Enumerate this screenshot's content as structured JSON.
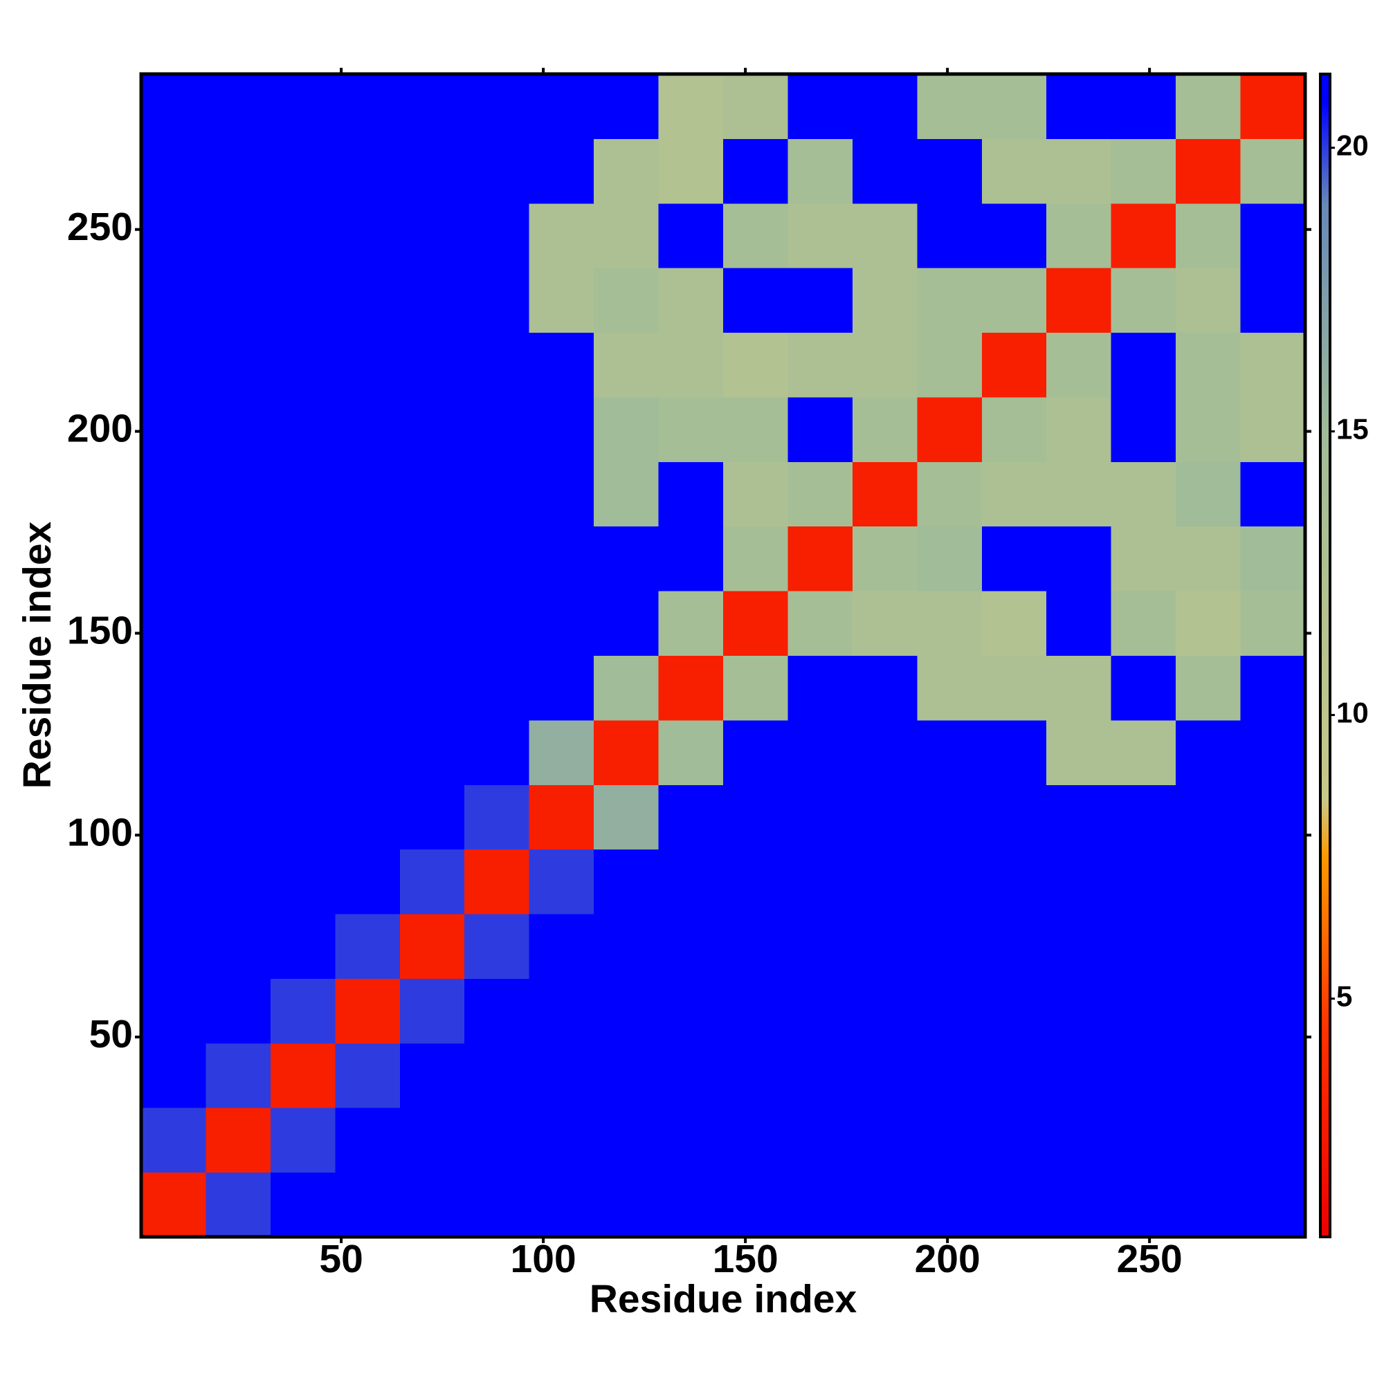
{
  "chart_data": {
    "type": "heatmap",
    "xlabel": "Residue index",
    "ylabel": "Residue index",
    "xbins": [
      0.5,
      16.5,
      32.5,
      48.5,
      64.5,
      80.5,
      96.5,
      112.5,
      128.5,
      144.5,
      160.5,
      176.5,
      192.5,
      208.5,
      224.5,
      240.5,
      256.5,
      272.5,
      288.5
    ],
    "ybins": [
      0.5,
      16.5,
      32.5,
      48.5,
      64.5,
      80.5,
      96.5,
      112.5,
      128.5,
      144.5,
      160.5,
      176.5,
      192.5,
      208.5,
      224.5,
      240.5,
      256.5,
      272.5,
      288.5
    ],
    "z": [
      [
        3,
        20,
        21,
        21,
        21,
        21,
        21,
        21,
        21,
        21,
        21,
        21,
        21,
        21,
        21,
        21,
        21,
        21
      ],
      [
        20,
        3,
        20,
        21,
        21,
        21,
        21,
        21,
        21,
        21,
        21,
        21,
        21,
        21,
        21,
        21,
        21,
        21
      ],
      [
        21,
        20,
        3,
        20,
        21,
        21,
        21,
        21,
        21,
        21,
        21,
        21,
        21,
        21,
        21,
        21,
        21,
        21
      ],
      [
        21,
        21,
        20,
        3,
        20,
        21,
        21,
        21,
        21,
        21,
        21,
        21,
        21,
        21,
        21,
        21,
        21,
        21
      ],
      [
        21,
        21,
        21,
        20,
        3,
        20,
        21,
        21,
        21,
        21,
        21,
        21,
        21,
        21,
        21,
        21,
        21,
        21
      ],
      [
        21,
        21,
        21,
        21,
        20,
        3,
        20,
        21,
        21,
        21,
        21,
        21,
        21,
        21,
        21,
        21,
        21,
        21
      ],
      [
        21,
        21,
        21,
        21,
        21,
        20,
        3,
        16,
        21,
        21,
        21,
        21,
        21,
        21,
        21,
        21,
        21,
        21
      ],
      [
        21,
        21,
        21,
        21,
        21,
        21,
        16,
        3,
        15,
        21,
        21,
        21,
        21,
        21,
        13,
        13,
        21,
        21
      ],
      [
        21,
        21,
        21,
        21,
        21,
        21,
        21,
        15,
        3,
        14,
        21,
        21,
        13,
        13,
        13,
        21,
        14,
        21
      ],
      [
        21,
        21,
        21,
        21,
        21,
        21,
        21,
        21,
        14,
        3,
        14,
        13,
        13,
        12,
        21,
        14,
        12,
        14
      ],
      [
        21,
        21,
        21,
        21,
        21,
        21,
        21,
        21,
        21,
        14,
        3,
        14,
        15,
        21,
        21,
        13,
        13,
        15
      ],
      [
        21,
        21,
        21,
        21,
        21,
        21,
        21,
        15,
        21,
        13,
        14,
        3,
        14,
        13,
        13,
        13,
        15,
        21
      ],
      [
        21,
        21,
        21,
        21,
        21,
        21,
        21,
        15,
        14,
        14,
        21,
        14,
        3,
        14,
        13,
        21,
        14,
        13
      ],
      [
        21,
        21,
        21,
        21,
        21,
        21,
        21,
        13,
        13,
        12,
        13,
        13,
        14,
        3,
        14,
        21,
        14,
        13
      ],
      [
        21,
        21,
        21,
        21,
        21,
        21,
        13,
        14,
        13,
        21,
        21,
        13,
        14,
        14,
        3,
        14,
        13,
        21
      ],
      [
        21,
        21,
        21,
        21,
        21,
        21,
        13,
        13,
        21,
        14,
        13,
        13,
        21,
        21,
        14,
        3,
        14,
        21
      ],
      [
        21,
        21,
        21,
        21,
        21,
        21,
        21,
        13,
        12,
        21,
        14,
        21,
        21,
        13,
        13,
        14,
        3,
        14
      ],
      [
        21,
        21,
        21,
        21,
        21,
        21,
        21,
        21,
        12,
        13,
        21,
        21,
        14,
        14,
        21,
        21,
        14,
        3
      ]
    ],
    "xlim": [
      0.5,
      288.5
    ],
    "ylim": [
      0.5,
      288.5
    ],
    "xticks": [
      50,
      100,
      150,
      200,
      250
    ],
    "yticks": [
      50,
      100,
      150,
      200,
      250
    ],
    "zlim": [
      0.8,
      21.3
    ],
    "zticks": [
      5,
      10,
      15,
      20
    ],
    "colorscale": [
      [
        0.8,
        "#ee0000"
      ],
      [
        4.5,
        "#ff3300"
      ],
      [
        7.5,
        "#ff9900"
      ],
      [
        8.5,
        "#c8c888"
      ],
      [
        15,
        "#a0bc98"
      ],
      [
        19,
        "#6888b8"
      ],
      [
        20.8,
        "#0000ff"
      ]
    ]
  }
}
